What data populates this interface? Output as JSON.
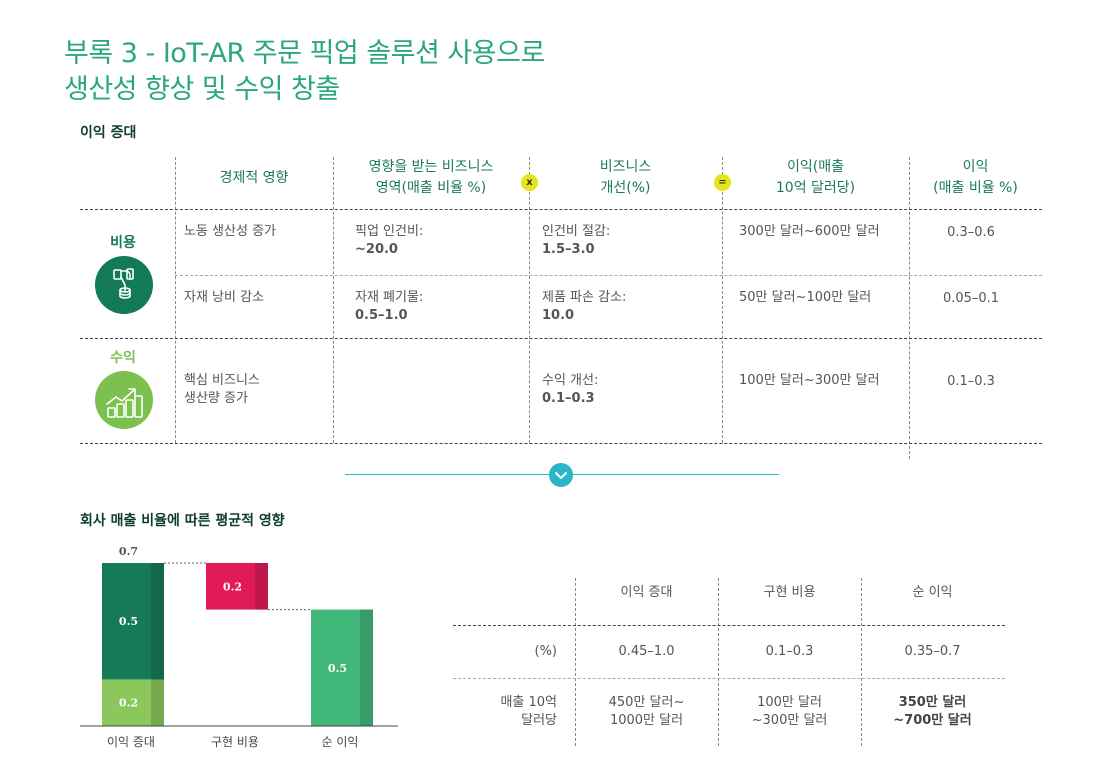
{
  "page": {
    "title_line1": "부록 3 - IoT-AR 주문 픽업 솔루션 사용으로",
    "title_line2": "생산성 향상 및 수익 창출"
  },
  "profit_table": {
    "section_title": "이익 증대",
    "headers": {
      "col1": "경제적 영향",
      "col2_l1": "영향을 받는 비즈니스",
      "col2_l2": "영역(매출 비율 %)",
      "op_multiply": "x",
      "col3_l1": "비즈니스",
      "col3_l2": "개선(%)",
      "op_equals": "=",
      "col4_l1": "이익(매출",
      "col4_l2": "10억 달러당)",
      "col5_l1": "이익",
      "col5_l2": "(매출 비율 %)"
    },
    "categories": {
      "cost": "비용",
      "revenue": "수익"
    },
    "rows": [
      {
        "impact": "노동 생산성 증가",
        "area_label": "픽업 인건비:",
        "area_value": "~20.0",
        "improve_label": "인건비 절감:",
        "improve_value": "1.5–3.0",
        "profit_per_billion": "300만 달러~600만 달러",
        "profit_pct": "0.3–0.6"
      },
      {
        "impact": "자재 낭비 감소",
        "area_label": "자재 폐기물:",
        "area_value": "0.5–1.0",
        "improve_label": "제품 파손 감소:",
        "improve_value": "10.0",
        "profit_per_billion": "50만 달러~100만 달러",
        "profit_pct": "0.05–0.1"
      },
      {
        "impact_l1": "핵심 비즈니스",
        "impact_l2": "생산량 증가",
        "improve_label": "수익 개선:",
        "improve_value": "0.1–0.3",
        "profit_per_billion": "100만 달러~300만 달러",
        "profit_pct": "0.1–0.3"
      }
    ]
  },
  "chart_section_title": "회사 매출 비율에 따른 평균적 영향",
  "chart_data": {
    "type": "bar",
    "subtype": "waterfall",
    "title": "회사 매출 비율에 따른 평균적 영향",
    "categories": [
      "이익 증대",
      "구현 비용",
      "순 이익"
    ],
    "series": [
      {
        "name": "이익 증대 (하단)",
        "values": [
          0.2,
          null,
          null
        ],
        "color": "#8cc75b"
      },
      {
        "name": "이익 증대 (상단)",
        "values": [
          0.5,
          null,
          null
        ],
        "color": "#157a55"
      },
      {
        "name": "구현 비용",
        "values": [
          null,
          0.2,
          null
        ],
        "color": "#e01b58"
      },
      {
        "name": "순 이익",
        "values": [
          null,
          null,
          0.5
        ],
        "color": "#41b77a"
      }
    ],
    "total_label": "0.7",
    "ylim": [
      0,
      0.7
    ],
    "xlabel": "",
    "ylabel": ""
  },
  "summary_table": {
    "headers": [
      "이익 증대",
      "구현 비용",
      "순 이익"
    ],
    "rows": [
      {
        "label": "(%)",
        "values": [
          "0.45–1.0",
          "0.1–0.3",
          "0.35–0.7"
        ]
      },
      {
        "label_l1": "매출 10억",
        "label_l2": "달러당",
        "values_l1": [
          "450만 달러~",
          "100만 달러",
          "350만 달러"
        ],
        "values_l2": [
          "1000만 달러",
          "~300만 달러",
          "~700만 달러"
        ]
      }
    ]
  },
  "colors": {
    "title": "#2aa87a",
    "header_text": "#1c7a56",
    "cost_green": "#127a55",
    "revenue_green": "#7cc14f",
    "operator_yellow": "#e4e61a",
    "divider_teal": "#2bb5c9"
  },
  "icons": {
    "cost_icon": "hand-coin-icon",
    "revenue_icon": "coins-growth-icon",
    "scroll_icon": "chevron-down-icon",
    "multiply_icon": "multiply-icon",
    "equals_icon": "equals-icon"
  }
}
